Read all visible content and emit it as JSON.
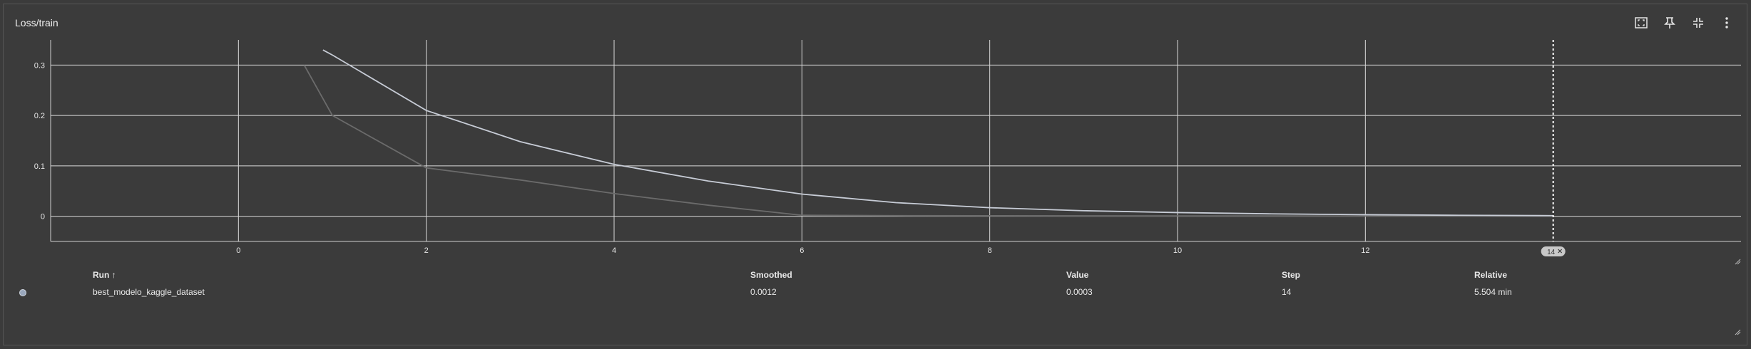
{
  "card": {
    "title": "Loss/train",
    "toolbar": [
      {
        "icon": "fit-domain-icon"
      },
      {
        "icon": "pin-icon"
      },
      {
        "icon": "collapse-icon"
      },
      {
        "icon": "more-vert-icon"
      }
    ]
  },
  "chart_data": {
    "type": "line",
    "xlim": [
      -2,
      16
    ],
    "ylim": [
      -0.05,
      0.35
    ],
    "x_ticks": [
      "0",
      "2",
      "4",
      "6",
      "8",
      "10",
      "12"
    ],
    "x_tick_values": [
      0,
      2,
      4,
      6,
      8,
      10,
      12
    ],
    "y_ticks": [
      "0",
      "0.1",
      "0.2",
      "0.3"
    ],
    "y_tick_values": [
      0,
      0.1,
      0.2,
      0.3
    ],
    "grid": true,
    "hover_step": 14,
    "hover_label": "14",
    "series": [
      {
        "color": "#c7ccd6",
        "x": [
          0.9,
          1,
          2,
          3,
          4,
          5,
          6,
          7,
          8,
          9,
          10,
          11,
          12,
          13,
          14
        ],
        "y": [
          0.33,
          0.32,
          0.21,
          0.148,
          0.103,
          0.07,
          0.044,
          0.027,
          0.017,
          0.011,
          0.0073,
          0.0048,
          0.0031,
          0.0019,
          0.0012
        ]
      },
      {
        "color": "#6b6b6b",
        "x": [
          0.7,
          1,
          2,
          3,
          4,
          5,
          6,
          7,
          8,
          9,
          10,
          11,
          12,
          13,
          14
        ],
        "y": [
          0.3,
          0.2,
          0.096,
          0.072,
          0.045,
          0.022,
          0.002,
          0.0012,
          0.001,
          0.0008,
          0.0007,
          0.0006,
          0.0005,
          0.0004,
          0.0003
        ]
      }
    ]
  },
  "table": {
    "headers": {
      "run": "Run ↑",
      "smoothed": "Smoothed",
      "value": "Value",
      "step": "Step",
      "relative": "Relative"
    },
    "rows": [
      {
        "color": "#9aa8bd",
        "run": "best_modelo_kaggle_dataset",
        "smoothed": "0.0012",
        "value": "0.0003",
        "step": "14",
        "relative": "5.504 min"
      }
    ]
  }
}
